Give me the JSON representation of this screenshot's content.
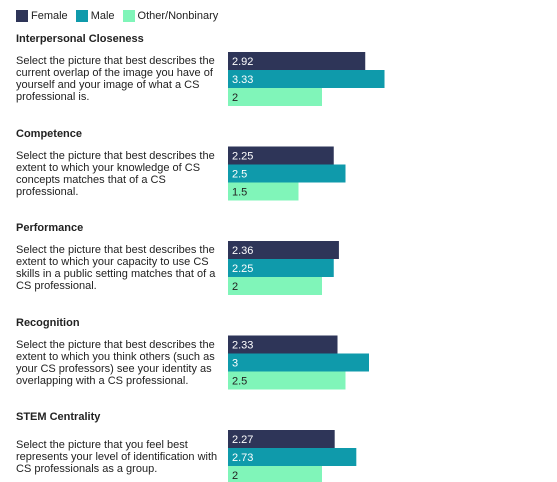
{
  "chart_data": {
    "type": "bar",
    "orientation": "horizontal",
    "categories": [
      "Interpersonal Closeness",
      "Competence",
      "Performance",
      "Recognition",
      "STEM Centrality"
    ],
    "category_descriptions": [
      "Select the picture that best describes the current overlap of the image you have of yourself and your image of what a CS professional is.",
      "Select the picture that best describes the extent to which your knowledge of CS concepts matches that of a CS professional.",
      "Select the picture that best describes the extent to which your capacity to use CS skills in a public setting matches that of a CS professional.",
      "Select the picture that best describes the extent to which you think others (such as your CS professors) see your identity as overlapping with a CS professional.",
      "Select the picture that you feel best represents your level of identification with CS professionals as a group."
    ],
    "series": [
      {
        "name": "Female",
        "color": "#2e3558",
        "values": [
          2.92,
          2.25,
          2.36,
          2.33,
          2.27
        ]
      },
      {
        "name": "Male",
        "color": "#0f9aab",
        "values": [
          3.33,
          2.5,
          2.25,
          3,
          2.73
        ]
      },
      {
        "name": "Other/Nonbinary",
        "color": "#80f5b9",
        "values": [
          2,
          1.5,
          2,
          2.5,
          2
        ]
      }
    ],
    "xlim": [
      0,
      7
    ],
    "legend": "top-left"
  }
}
